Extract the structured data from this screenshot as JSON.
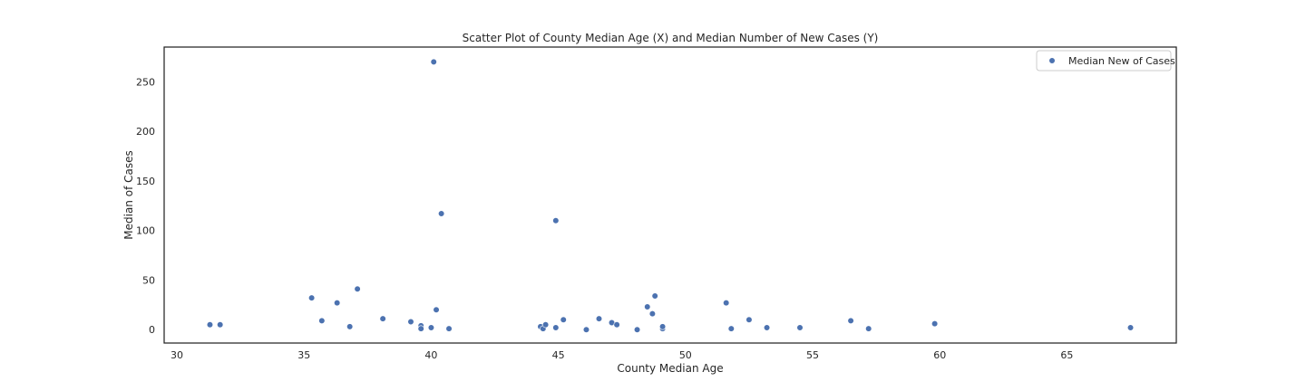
{
  "chart_data": {
    "type": "scatter",
    "title": "Scatter Plot of County Median Age (X) and Median Number of New Cases (Y)",
    "xlabel": "County Median Age",
    "ylabel": "Median of Cases",
    "xlim": [
      29.5,
      69.3
    ],
    "ylim": [
      -13.5,
      285
    ],
    "xticks": [
      30,
      35,
      40,
      45,
      50,
      55,
      60,
      65
    ],
    "yticks": [
      0,
      50,
      100,
      150,
      200,
      250
    ],
    "grid": false,
    "legend_position": "top-right",
    "series": [
      {
        "name": "Median New of Cases",
        "color": "#4c72b0",
        "points": [
          [
            31.3,
            5
          ],
          [
            31.7,
            5
          ],
          [
            35.3,
            32
          ],
          [
            35.7,
            9
          ],
          [
            36.3,
            27
          ],
          [
            36.8,
            3
          ],
          [
            37.1,
            41
          ],
          [
            38.1,
            11
          ],
          [
            39.2,
            8
          ],
          [
            39.6,
            4
          ],
          [
            39.6,
            1
          ],
          [
            40.0,
            2
          ],
          [
            40.1,
            270
          ],
          [
            40.2,
            20
          ],
          [
            40.4,
            117
          ],
          [
            40.7,
            1
          ],
          [
            44.3,
            3
          ],
          [
            44.4,
            1
          ],
          [
            44.5,
            5
          ],
          [
            44.9,
            2
          ],
          [
            44.9,
            110
          ],
          [
            45.2,
            10
          ],
          [
            46.1,
            0
          ],
          [
            46.6,
            11
          ],
          [
            47.1,
            7
          ],
          [
            47.3,
            5
          ],
          [
            48.1,
            0
          ],
          [
            48.5,
            23
          ],
          [
            48.7,
            16
          ],
          [
            48.8,
            34
          ],
          [
            49.1,
            1
          ],
          [
            49.1,
            3
          ],
          [
            51.6,
            27
          ],
          [
            51.8,
            1
          ],
          [
            52.5,
            10
          ],
          [
            53.2,
            2
          ],
          [
            54.5,
            2
          ],
          [
            56.5,
            9
          ],
          [
            57.2,
            1
          ],
          [
            59.8,
            6
          ],
          [
            67.5,
            2
          ]
        ]
      }
    ]
  }
}
